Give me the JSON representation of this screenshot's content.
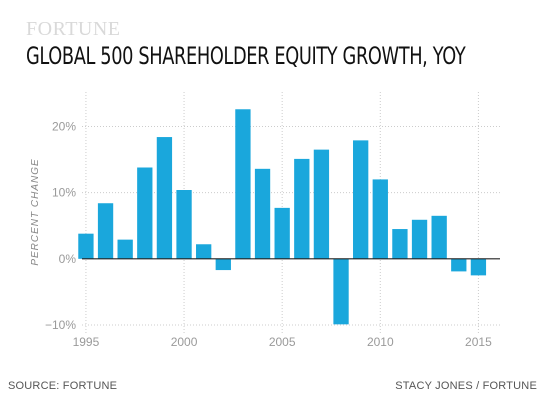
{
  "header": {
    "brand": "FORTUNE",
    "title": "GLOBAL 500 SHAREHOLDER EQUITY GROWTH, YOY"
  },
  "footer": {
    "source": "SOURCE: FORTUNE",
    "credit": "STACY JONES / FORTUNE"
  },
  "colors": {
    "bar": "#1aa7dc",
    "grid": "#cccccc",
    "zero_line": "#222222"
  },
  "chart_data": {
    "type": "bar",
    "title": "GLOBAL 500 SHAREHOLDER EQUITY GROWTH, YOY",
    "xlabel": "",
    "ylabel": "PERCENT CHANGE",
    "x": [
      1995,
      1996,
      1997,
      1998,
      1999,
      2000,
      2001,
      2002,
      2003,
      2004,
      2005,
      2006,
      2007,
      2008,
      2009,
      2010,
      2011,
      2012,
      2013,
      2014,
      2015
    ],
    "values": [
      3.8,
      8.4,
      2.9,
      13.8,
      18.4,
      10.4,
      2.2,
      -1.7,
      22.6,
      13.6,
      7.7,
      15.1,
      16.5,
      -9.9,
      17.9,
      12.0,
      4.5,
      5.9,
      6.5,
      -1.9,
      -2.5
    ],
    "xticks": [
      1995,
      2000,
      2005,
      2010,
      2015
    ],
    "xtick_labels": [
      "1995",
      "2000",
      "2005",
      "2010",
      "2015"
    ],
    "yticks": [
      -10,
      0,
      10,
      20
    ],
    "ytick_labels": [
      "−10%",
      "0%",
      "10%",
      "20%"
    ],
    "xlim": [
      1994.8,
      2016.1
    ],
    "ylim": [
      -10,
      24
    ],
    "grid": true
  }
}
